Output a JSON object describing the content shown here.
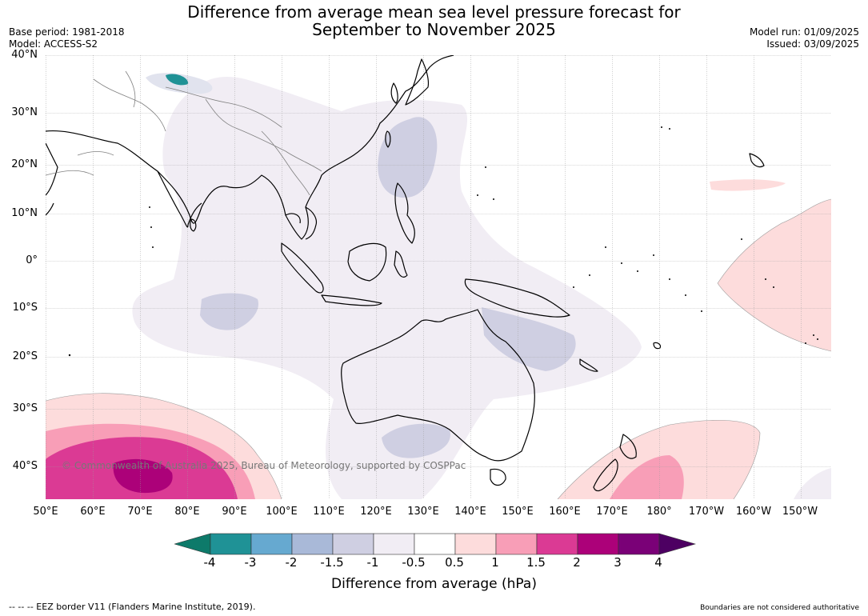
{
  "title": {
    "line1": "Difference from average mean sea level pressure forecast for",
    "line2": "September to November 2025"
  },
  "meta": {
    "base_period": "Base period: 1981-2018",
    "model": "Model: ACCESS-S2",
    "model_run": "Model run: 01/09/2025",
    "issued": "Issued: 03/09/2025"
  },
  "map": {
    "lat_labels": [
      "40°N",
      "30°N",
      "20°N",
      "10°N",
      "0°",
      "10°S",
      "20°S",
      "30°S",
      "40°S"
    ],
    "lon_labels": [
      "50°E",
      "60°E",
      "70°E",
      "80°E",
      "90°E",
      "100°E",
      "110°E",
      "120°E",
      "130°E",
      "140°E",
      "150°E",
      "160°E",
      "170°E",
      "180°",
      "170°W",
      "160°W",
      "150°W"
    ],
    "copyright": "© Commonwealth of Australia 2025, Bureau of Meteorology, supported by COSPPac",
    "anomaly_colors": {
      "minus_0_5_to_minus_1": "#f1edf4",
      "minus_1_to_minus_1_5": "#cfcfe2",
      "plus_0_5_to_1": "#fddcdc",
      "plus_1_to_1_5": "#f89eb7",
      "plus_1_5_to_2": "#db3a94",
      "plus_2_to_3": "#ac0179"
    },
    "land_outline_color": "#000000"
  },
  "colorbar": {
    "ticks": [
      "-4",
      "-3",
      "-2",
      "-1.5",
      "-1",
      "-0.5",
      "0.5",
      "1",
      "1.5",
      "2",
      "3",
      "4"
    ],
    "colors": [
      "#0d7a6a",
      "#1f9296",
      "#66a9d0",
      "#a9b9d8",
      "#cfcfe2",
      "#f1edf4",
      "#ffffff",
      "#fddcdc",
      "#f89eb7",
      "#db3a94",
      "#ac0179",
      "#7a0177",
      "#4d0062"
    ],
    "label": "Difference from average (hPa)"
  },
  "footer": {
    "eez": "--  --  -- EEZ border V11 (Flanders Marine Institute, 2019).",
    "disclaimer": "Boundaries are not considered authoritative"
  }
}
